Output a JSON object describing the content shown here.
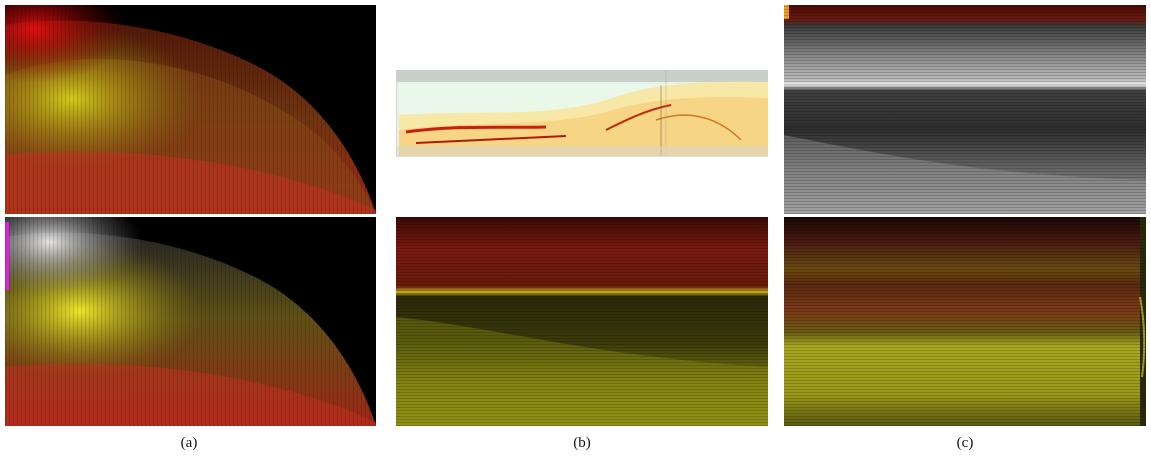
{
  "captions": {
    "a": "(a)",
    "b": "(b)",
    "c": "(c)"
  },
  "colors": {
    "red": "#c81e10",
    "yellow": "#d9d21a",
    "white": "#e6e6e6",
    "magenta": "#e020e0",
    "orange": "#f0a020",
    "background": "#000000"
  }
}
